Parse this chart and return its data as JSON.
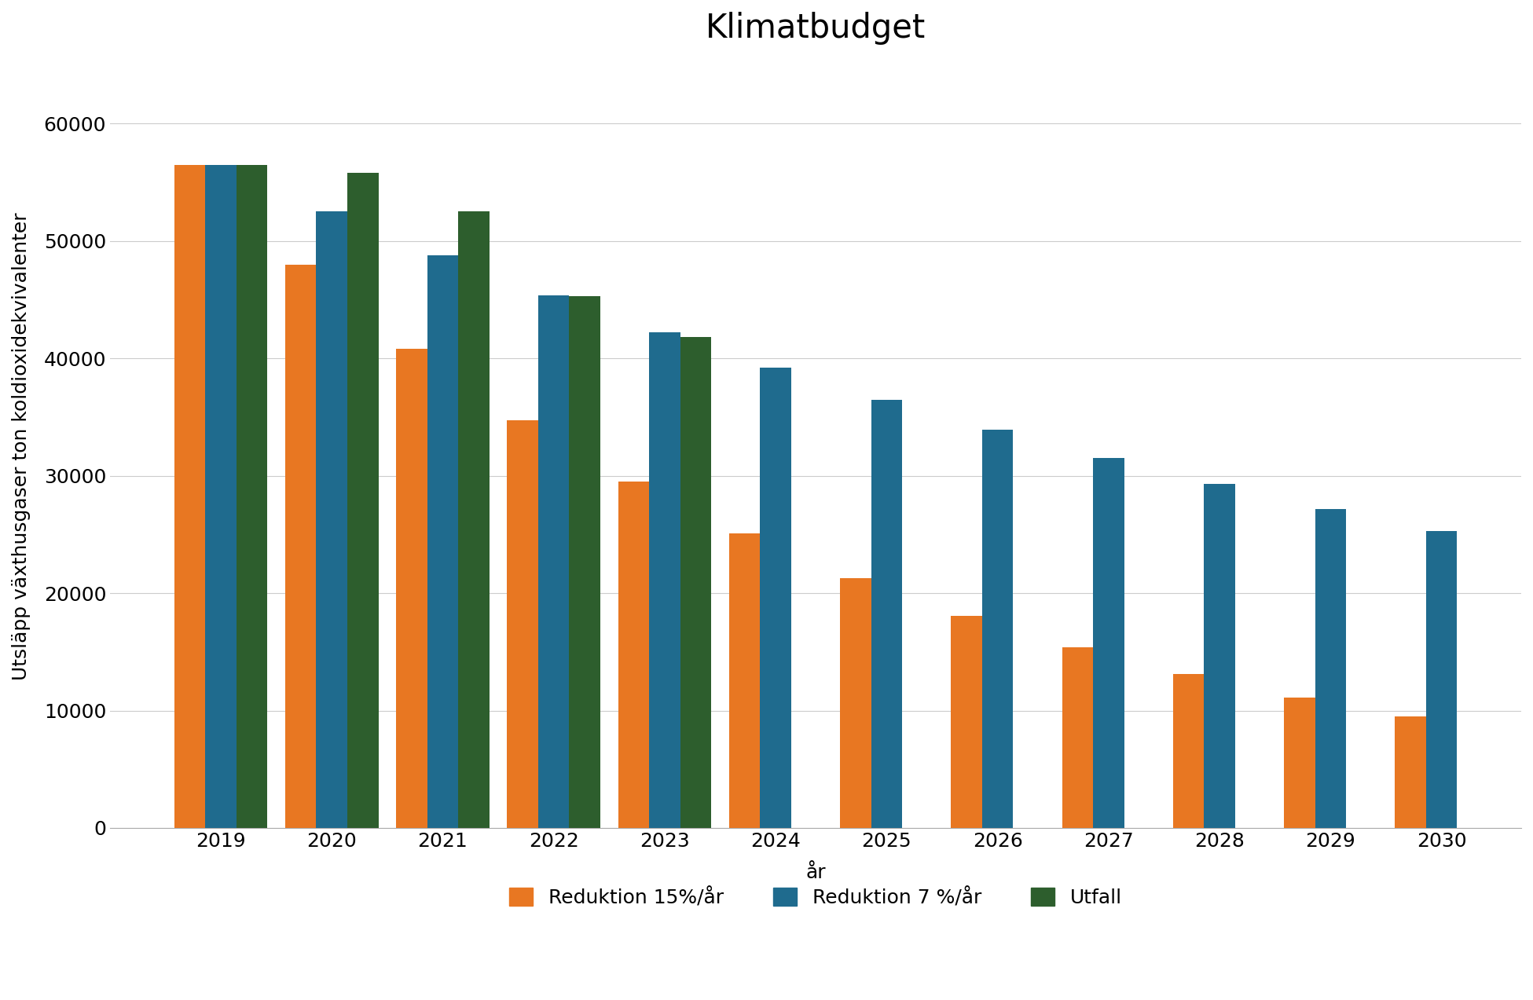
{
  "title": "Klimatbudget",
  "xlabel": "år",
  "ylabel": "Utsläpp växthusgaser ton koldioxidekvivalenter",
  "years": [
    2019,
    2020,
    2021,
    2022,
    2023,
    2024,
    2025,
    2026,
    2027,
    2028,
    2029,
    2030
  ],
  "reduktion_15": [
    56500,
    48000,
    40800,
    34700,
    29500,
    25100,
    21300,
    18100,
    15400,
    13100,
    11100,
    9500
  ],
  "reduktion_7": [
    56500,
    52500,
    48800,
    45400,
    42200,
    39200,
    36500,
    33900,
    31500,
    29300,
    27200,
    25300
  ],
  "utfall": [
    56500,
    55800,
    52500,
    45300,
    41800,
    null,
    null,
    null,
    null,
    null,
    null,
    null
  ],
  "color_15": "#E87722",
  "color_7": "#1F6B8E",
  "color_utfall": "#2D5E2D",
  "background_color": "#FFFFFF",
  "ylim": [
    0,
    65000
  ],
  "yticks": [
    0,
    10000,
    20000,
    30000,
    40000,
    50000,
    60000
  ],
  "ytick_labels": [
    "0",
    "10000",
    "20000",
    "30000",
    "40000",
    "50000",
    "60000"
  ],
  "legend_labels": [
    "Reduktion 15%/år",
    "Reduktion 7 %/år",
    "Utfall"
  ],
  "bar_width": 0.28,
  "title_fontsize": 30,
  "label_fontsize": 18,
  "tick_fontsize": 18,
  "legend_fontsize": 18
}
